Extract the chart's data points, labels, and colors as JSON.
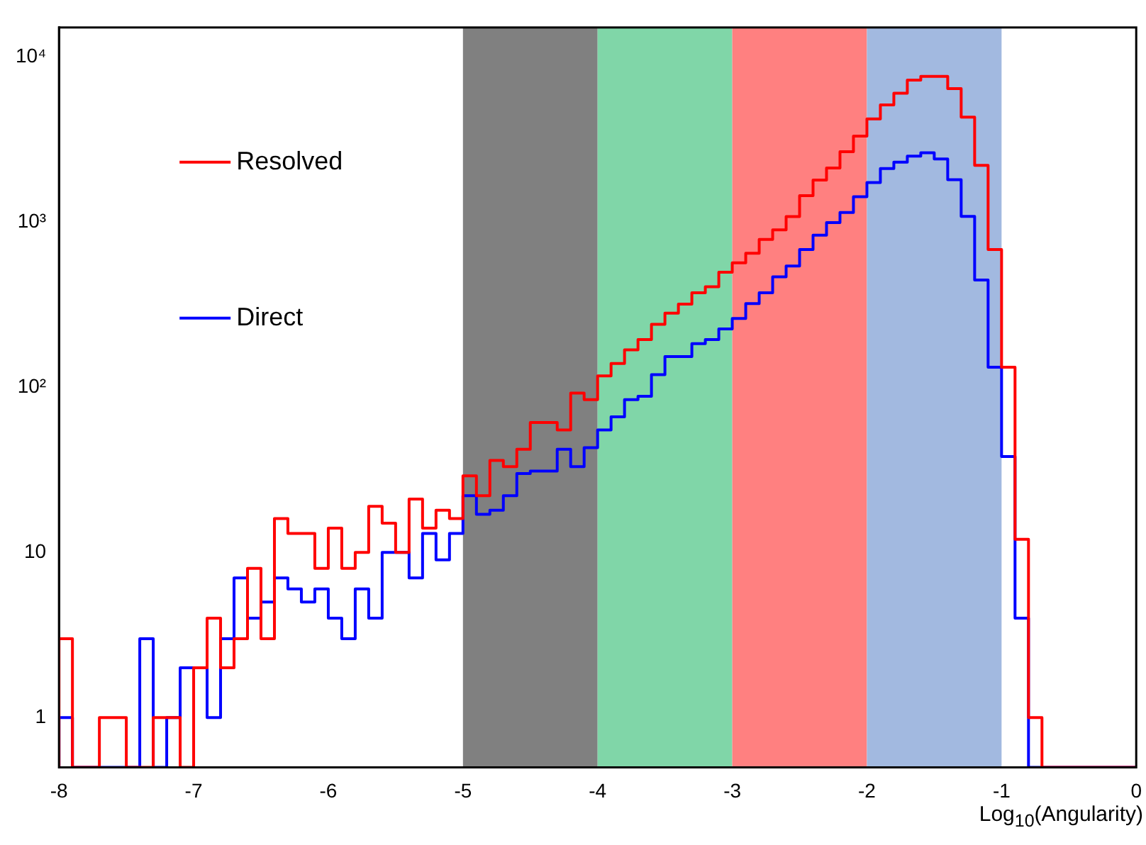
{
  "chart_data": {
    "type": "histogram",
    "xlabel": "Log$_{10}$(Angularity)",
    "bins": [
      -8,
      -7.9,
      -7.8,
      -7.7,
      -7.6,
      -7.5,
      -7.4,
      -7.3,
      -7.2,
      -7.1,
      -7,
      -6.9,
      -6.8,
      -6.7,
      -6.6,
      -6.5,
      -6.4,
      -6.3,
      -6.2,
      -6.1,
      -6,
      -5.9,
      -5.8,
      -5.7,
      -5.6,
      -5.5,
      -5.4,
      -5.3,
      -5.2,
      -5.1,
      -5,
      -4.9,
      -4.8,
      -4.7,
      -4.6,
      -4.5,
      -4.4,
      -4.3,
      -4.2,
      -4.1,
      -4,
      -3.9,
      -3.8,
      -3.7,
      -3.6,
      -3.5,
      -3.4,
      -3.3,
      -3.2,
      -3.1,
      -3,
      -2.9,
      -2.8,
      -2.7,
      -2.6,
      -2.5,
      -2.4,
      -2.3,
      -2.2,
      -2.1,
      -2,
      -1.9,
      -1.8,
      -1.7,
      -1.6,
      -1.5,
      -1.4,
      -1.3,
      -1.2,
      -1.1,
      -1,
      -0.9,
      -0.8,
      -0.7,
      -0.6,
      -0.5,
      -0.4,
      -0.3,
      -0.2,
      -0.1,
      0
    ],
    "series": [
      {
        "name": "Resolved",
        "color": "#ff0000",
        "values": [
          3,
          null,
          null,
          1,
          1,
          null,
          null,
          1,
          1,
          null,
          2,
          4,
          2,
          3,
          8,
          3,
          16,
          13,
          13,
          8,
          14,
          8,
          10,
          19,
          15,
          10,
          21,
          14,
          18,
          16,
          29,
          22,
          36,
          33,
          42,
          61,
          61,
          55,
          92,
          84,
          117,
          139,
          168,
          194,
          240,
          280,
          318,
          372,
          405,
          496,
          565,
          646,
          783,
          895,
          1075,
          1440,
          1790,
          2120,
          2660,
          3300,
          4200,
          5100,
          6000,
          7200,
          7600,
          7600,
          6400,
          4300,
          2200,
          680,
          132,
          12,
          1,
          null,
          null,
          null,
          null,
          null,
          null,
          null
        ]
      },
      {
        "name": "Direct",
        "color": "#0000ff",
        "values": [
          1,
          null,
          null,
          null,
          null,
          null,
          3,
          null,
          1,
          2,
          2,
          1,
          3,
          7,
          4,
          5,
          7,
          6,
          5,
          6,
          4,
          3,
          6,
          4,
          10,
          10,
          7,
          13,
          9,
          13,
          22,
          17,
          18,
          22,
          30,
          31,
          31,
          42,
          33,
          43,
          55,
          66,
          84,
          88,
          119,
          153,
          153,
          183,
          194,
          225,
          260,
          320,
          372,
          465,
          540,
          680,
          830,
          990,
          1140,
          1420,
          1730,
          2100,
          2300,
          2500,
          2620,
          2400,
          1800,
          1080,
          445,
          132,
          38,
          4,
          null,
          null,
          null,
          null,
          null,
          null,
          null,
          null
        ]
      }
    ],
    "xlim": [
      -8,
      0
    ],
    "xticks": [
      -8,
      -7,
      -6,
      -5,
      -4,
      -3,
      -2,
      -1,
      0
    ],
    "ylim": [
      0.5,
      15000
    ],
    "yticks": [
      1,
      10,
      {
        "value": 100,
        "label": "10²"
      },
      {
        "value": 1000,
        "label": "10³"
      },
      {
        "value": 10000,
        "label": "10⁴"
      }
    ],
    "log": true,
    "legend": "top left",
    "bands": [
      {
        "axis": "x",
        "from": -5,
        "to": -4,
        "color": "#808080"
      },
      {
        "axis": "x",
        "from": -4,
        "to": -3,
        "color": "#80d6a8"
      },
      {
        "axis": "x",
        "from": -3,
        "to": -2,
        "color": "#ff8080"
      },
      {
        "axis": "x",
        "from": -2,
        "to": -1,
        "color": "#a2b9e0"
      }
    ]
  }
}
